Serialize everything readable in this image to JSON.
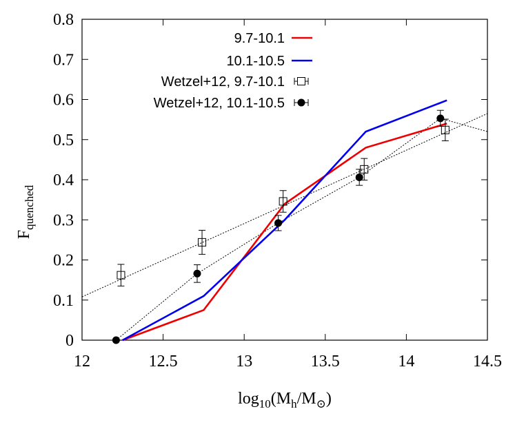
{
  "chart_data": {
    "type": "line",
    "xlabel": {
      "main": "log",
      "sub1": "10",
      "mid": "(M",
      "sub2": "h",
      "mid2": "/M",
      "sub3": "⊙",
      "end": ")"
    },
    "ylabel": {
      "main": "F",
      "sub": "quenched"
    },
    "xlim": [
      12,
      14.5
    ],
    "ylim": [
      0,
      0.8
    ],
    "xticks": [
      "12",
      "12.5",
      "13",
      "13.5",
      "14",
      "14.5"
    ],
    "yticks": [
      "0",
      "0.1",
      "0.2",
      "0.3",
      "0.4",
      "0.5",
      "0.6",
      "0.7",
      "0.8"
    ],
    "xtick_values": [
      12,
      12.5,
      13,
      13.5,
      14,
      14.5
    ],
    "ytick_values": [
      0,
      0.1,
      0.2,
      0.3,
      0.4,
      0.5,
      0.6,
      0.7,
      0.8
    ],
    "grid": false,
    "legend_position": "top-center",
    "series": [
      {
        "name": "9.7-10.1",
        "kind": "line",
        "color": "#ee0000",
        "x": [
          12.25,
          12.75,
          13.25,
          13.75,
          14.25
        ],
        "y": [
          0.0,
          0.075,
          0.34,
          0.48,
          0.54
        ]
      },
      {
        "name": "10.1-10.5",
        "kind": "line",
        "color": "#0000ee",
        "x": [
          12.25,
          12.75,
          13.25,
          13.75,
          14.25
        ],
        "y": [
          0.0,
          0.11,
          0.3,
          0.52,
          0.598
        ]
      },
      {
        "name": "Wetzel+12, 9.7-10.1",
        "kind": "errorbar-open-square",
        "color": "#000000",
        "x": [
          12.24,
          12.74,
          13.24,
          13.74,
          14.24
        ],
        "y": [
          0.162,
          0.244,
          0.346,
          0.426,
          0.524
        ],
        "err": [
          0.027,
          0.03,
          0.027,
          0.027,
          0.027
        ],
        "fit_line": {
          "x": [
            12.0,
            14.5
          ],
          "y": [
            0.108,
            0.565
          ]
        }
      },
      {
        "name": "Wetzel+12, 10.1-10.5",
        "kind": "errorbar-filled-circle",
        "color": "#000000",
        "x": [
          12.21,
          12.71,
          13.21,
          13.71,
          14.21
        ],
        "y": [
          0.0,
          0.166,
          0.292,
          0.406,
          0.553
        ],
        "err": [
          0.0,
          0.022,
          0.019,
          0.02,
          0.02
        ],
        "fit_line": {
          "x": [
            12.21,
            12.71,
            13.21,
            13.71,
            14.21,
            14.5
          ],
          "y": [
            0.0,
            0.166,
            0.292,
            0.406,
            0.553,
            0.52
          ]
        }
      }
    ]
  }
}
